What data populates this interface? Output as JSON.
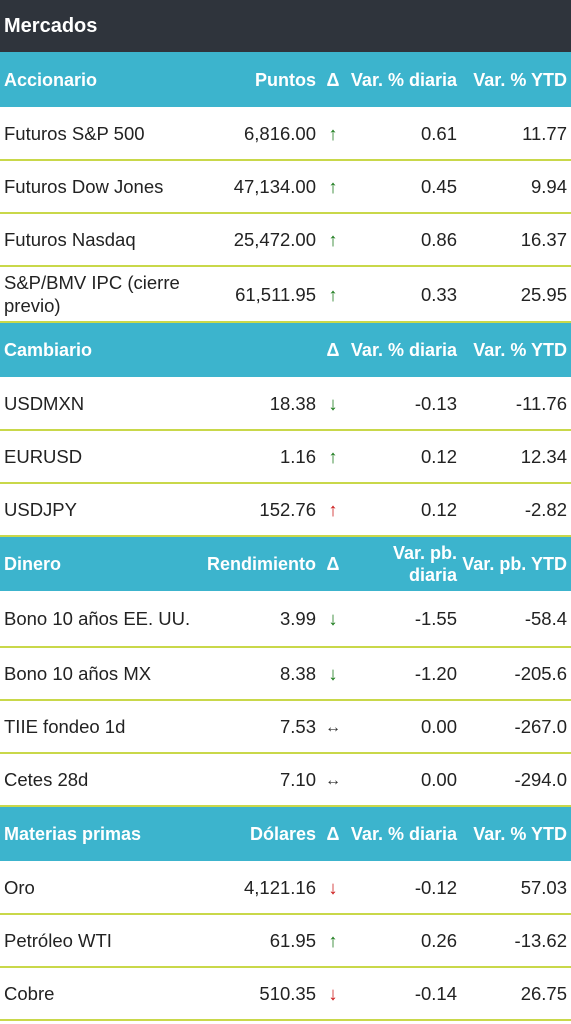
{
  "title": "Mercados",
  "sections": {
    "accionario": {
      "label": "Accionario",
      "col_value": "Puntos",
      "col_delta": "Δ",
      "col_daily": "Var. % diaria",
      "col_ytd": "Var. % YTD",
      "rows": [
        {
          "name": "Futuros S&P 500",
          "value": "6,816.00",
          "arrow": "↑",
          "trend": "up",
          "daily": "0.61",
          "ytd": "11.77"
        },
        {
          "name": "Futuros Dow Jones",
          "value": "47,134.00",
          "arrow": "↑",
          "trend": "up",
          "daily": "0.45",
          "ytd": "9.94"
        },
        {
          "name": "Futuros Nasdaq",
          "value": "25,472.00",
          "arrow": "↑",
          "trend": "up",
          "daily": "0.86",
          "ytd": "16.37"
        },
        {
          "name": "S&P/BMV IPC (cierre previo)",
          "value": "61,511.95",
          "arrow": "↑",
          "trend": "up",
          "daily": "0.33",
          "ytd": "25.95"
        }
      ]
    },
    "cambiario": {
      "label": "Cambiario",
      "col_value": "",
      "col_delta": "Δ",
      "col_daily": "Var. % diaria",
      "col_ytd": "Var. % YTD",
      "rows": [
        {
          "name": "USDMXN",
          "value": "18.38",
          "arrow": "↓",
          "trend": "down",
          "daily": "-0.13",
          "ytd": "-11.76"
        },
        {
          "name": "EURUSD",
          "value": "1.16",
          "arrow": "↑",
          "trend": "up",
          "daily": "0.12",
          "ytd": "12.34"
        },
        {
          "name": "USDJPY",
          "value": "152.76",
          "arrow": "↑",
          "trend": "up-red",
          "daily": "0.12",
          "ytd": "-2.82"
        }
      ]
    },
    "dinero": {
      "label": "Dinero",
      "col_value": "Rendimiento",
      "col_delta": "Δ",
      "col_daily": "Var. pb. diaria",
      "col_ytd": "Var. pb. YTD",
      "rows": [
        {
          "name": "Bono 10 años EE. UU.",
          "value": "3.99",
          "arrow": "↓",
          "trend": "down",
          "daily": "-1.55",
          "ytd": "-58.4"
        },
        {
          "name": "Bono 10 años MX",
          "value": "8.38",
          "arrow": "↓",
          "trend": "down",
          "daily": "-1.20",
          "ytd": "-205.6"
        },
        {
          "name": "TIIE fondeo 1d",
          "value": "7.53",
          "arrow": "↔",
          "trend": "flat",
          "daily": "0.00",
          "ytd": "-267.0"
        },
        {
          "name": "Cetes 28d",
          "value": "7.10",
          "arrow": "↔",
          "trend": "flat",
          "daily": "0.00",
          "ytd": "-294.0"
        }
      ]
    },
    "materias": {
      "label": "Materias primas",
      "col_value": "Dólares",
      "col_delta": "Δ",
      "col_daily": "Var. % diaria",
      "col_ytd": "Var. % YTD",
      "rows": [
        {
          "name": "Oro",
          "value": "4,121.16",
          "arrow": "↓",
          "trend": "down-red",
          "daily": "-0.12",
          "ytd": "57.03"
        },
        {
          "name": "Petróleo WTI",
          "value": "61.95",
          "arrow": "↑",
          "trend": "up",
          "daily": "0.26",
          "ytd": "-13.62"
        },
        {
          "name": "Cobre",
          "value": "510.35",
          "arrow": "↓",
          "trend": "down-red",
          "daily": "-0.14",
          "ytd": "26.75"
        }
      ]
    }
  },
  "colors": {
    "title_bg": "#2f343c",
    "header_bg": "#3cb4cd",
    "row_divider": "#c9d84a",
    "arrow_green": "#1a7a1a",
    "arrow_red": "#cc1a1a"
  }
}
